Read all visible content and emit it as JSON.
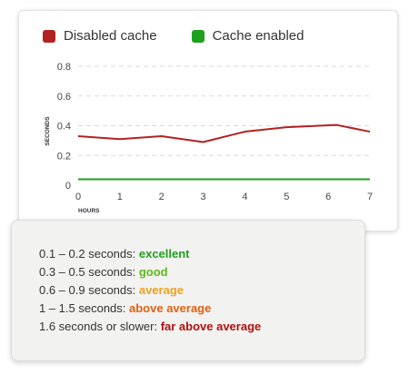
{
  "chart_data": {
    "type": "line",
    "title": "",
    "xlabel": "HOURS",
    "ylabel": "SECONDS",
    "xlim": [
      0,
      7
    ],
    "ylim": [
      0,
      0.8
    ],
    "x_ticks": [
      "0",
      "1",
      "2",
      "3",
      "4",
      "5",
      "6",
      "7"
    ],
    "y_ticks": [
      "0",
      "0.2",
      "0.4",
      "0.6",
      "0.8"
    ],
    "grid": true,
    "legend_position": "top-left",
    "series": [
      {
        "name": "Disabled cache",
        "color": "#b22222",
        "x": [
          0,
          1,
          2,
          3,
          4,
          5,
          6.2,
          7
        ],
        "y": [
          0.33,
          0.31,
          0.33,
          0.29,
          0.36,
          0.39,
          0.405,
          0.36
        ]
      },
      {
        "name": "Cache enabled",
        "color": "#1ea01e",
        "x": [
          0,
          7
        ],
        "y": [
          0.04,
          0.04
        ]
      }
    ]
  },
  "ratings": [
    {
      "range": "0.1 – 0.2 seconds: ",
      "grade": "excellent",
      "color": "#22a022"
    },
    {
      "range": "0.3 – 0.5 seconds: ",
      "grade": "good",
      "color": "#5cb81a"
    },
    {
      "range": "0.6 – 0.9 seconds: ",
      "grade": "average",
      "color": "#f0a020"
    },
    {
      "range": "1 – 1.5 seconds: ",
      "grade": "above average",
      "color": "#e06010"
    },
    {
      "range": "1.6 seconds or slower: ",
      "grade": "far above average",
      "color": "#b01010"
    }
  ]
}
